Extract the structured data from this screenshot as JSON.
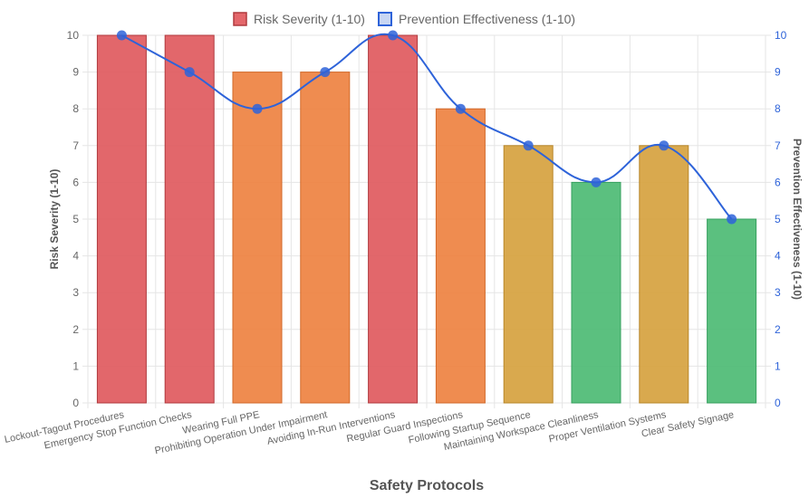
{
  "chart_data": {
    "type": "bar",
    "xlabel": "Safety Protocols",
    "ylabel": "Risk Severity (1-10)",
    "y2label": "Prevention Effectiveness (1-10)",
    "ylim": [
      0,
      10
    ],
    "y2lim": [
      0,
      10
    ],
    "grid": true,
    "legend_position": "top",
    "categories": [
      "Lockout-Tagout Procedures",
      "Emergency Stop Function Checks",
      "Wearing Full PPE",
      "Prohibiting Operation Under Impairment",
      "Avoiding In-Run Interventions",
      "Regular Guard Inspections",
      "Following Startup Sequence",
      "Maintaining Workspace Cleanliness",
      "Proper Ventilation Systems",
      "Clear Safety Signage"
    ],
    "y_ticks": [
      "0",
      "1",
      "2",
      "3",
      "4",
      "5",
      "6",
      "7",
      "8",
      "9",
      "10"
    ],
    "series": [
      {
        "name": "Risk Severity (1-10)",
        "type": "bar",
        "axis": "left",
        "values": [
          10,
          10,
          9,
          9,
          10,
          8,
          7,
          6,
          7,
          5
        ]
      },
      {
        "name": "Prevention Effectiveness (1-10)",
        "type": "line",
        "axis": "right",
        "smooth": true,
        "values": [
          10,
          9,
          8,
          9,
          10,
          8,
          7,
          6,
          7,
          5
        ]
      }
    ],
    "colors": {
      "severity_10": "#e05a5e",
      "severity_8_9": "#ee8241",
      "severity_7": "#d6a23f",
      "severity_5_6": "#4dbb74",
      "severity_10_border": "#b03a3e",
      "severity_8_9_border": "#d2692a",
      "severity_7_border": "#b8872a",
      "severity_5_6_border": "#37a05f",
      "line": "#2e63d9",
      "legend_bar_fill": "#e4676b",
      "legend_line_fill": "#c8d6f3"
    }
  }
}
